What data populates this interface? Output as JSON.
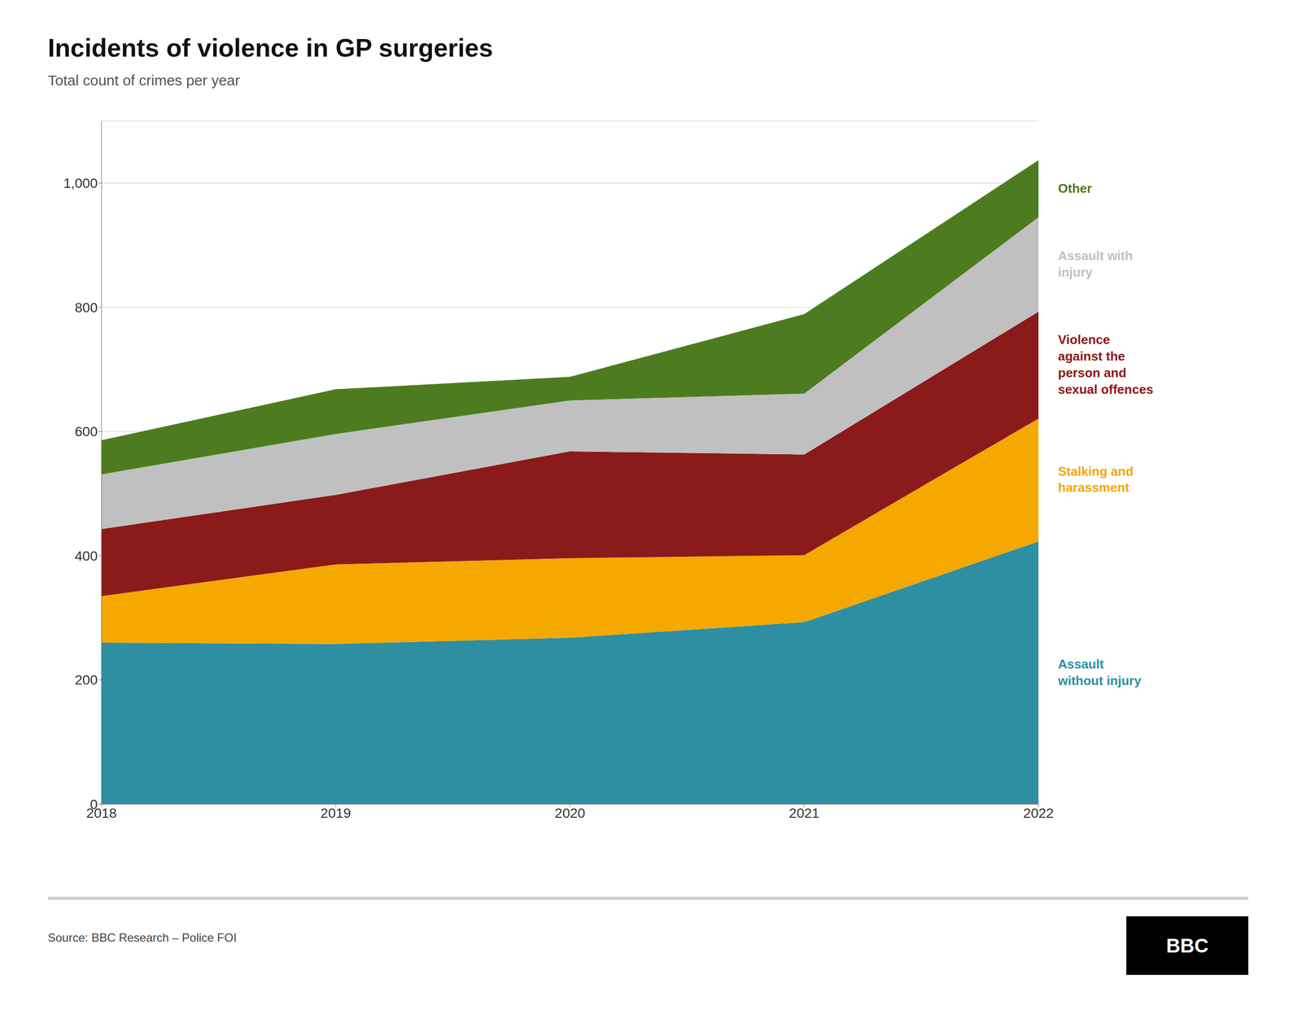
{
  "chart_data": {
    "type": "area",
    "stacked": true,
    "title": "Incidents of violence in GP surgeries",
    "subtitle": "Total count of crimes per year",
    "annotations": [
      "Source: BBC Research – Police FOI",
      "BBC"
    ],
    "x": [
      2018,
      2019,
      2020,
      2021,
      2022
    ],
    "xlim": [
      2018,
      2022
    ],
    "xticks": [
      2018,
      2019,
      2020,
      2021,
      2022
    ],
    "ylim": [
      0,
      1100
    ],
    "yticks": [
      0,
      200,
      400,
      600,
      800,
      {
        "value": 1000,
        "label": "1,000"
      }
    ],
    "grid": true,
    "series": [
      {
        "name": "Assault\nwithout injury",
        "color": "#2e8fa3",
        "values": [
          260,
          258,
          268,
          293,
          423
        ]
      },
      {
        "name": "Stalking and\nharassment",
        "color": "#f5a800",
        "values": [
          75,
          128,
          128,
          108,
          198
        ]
      },
      {
        "name": "Violence\nagainst the\nperson and\nsexual offences",
        "color": "#8b1a1a",
        "values": [
          108,
          112,
          172,
          162,
          172
        ]
      },
      {
        "name": "Assault with\ninjury",
        "color": "#c0c0c0",
        "values": [
          88,
          98,
          82,
          98,
          152
        ]
      },
      {
        "name": "Other",
        "color": "#4d7c20",
        "values": [
          55,
          72,
          38,
          128,
          92
        ]
      }
    ]
  }
}
